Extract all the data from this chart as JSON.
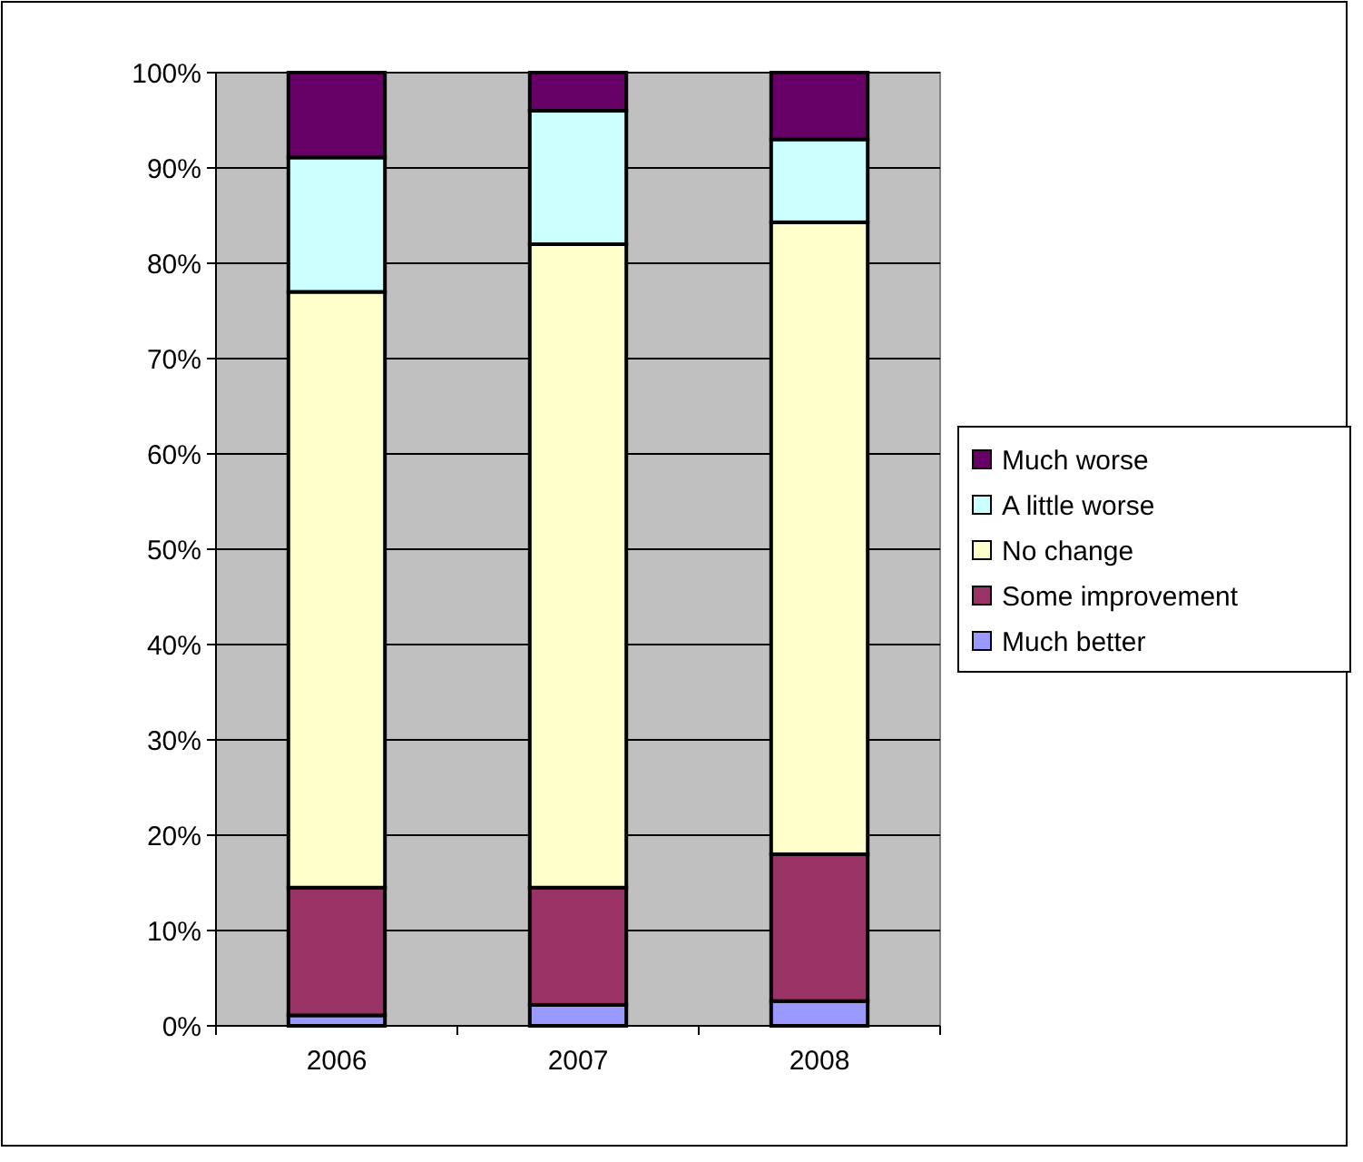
{
  "chart_data": {
    "type": "bar",
    "stacked": true,
    "categories": [
      "2006",
      "2007",
      "2008"
    ],
    "series": [
      {
        "name": "Much better",
        "color": "#9999ff",
        "values": [
          1.1,
          2.2,
          2.6
        ]
      },
      {
        "name": "Some improvement",
        "color": "#993366",
        "values": [
          13.4,
          12.3,
          15.4
        ]
      },
      {
        "name": "No change",
        "color": "#ffffcc",
        "values": [
          62.5,
          67.5,
          66.3
        ]
      },
      {
        "name": "A little worse",
        "color": "#ccffff",
        "values": [
          14.1,
          14,
          8.7
        ]
      },
      {
        "name": "Much worse",
        "color": "#660066",
        "values": [
          8.9,
          4,
          7
        ]
      }
    ],
    "ylim": [
      0,
      100
    ],
    "yticks": [
      {
        "value": 0,
        "label": "0%"
      },
      {
        "value": 10,
        "label": "10%"
      },
      {
        "value": 20,
        "label": "20%"
      },
      {
        "value": 30,
        "label": "30%"
      },
      {
        "value": 40,
        "label": "40%"
      },
      {
        "value": 50,
        "label": "50%"
      },
      {
        "value": 60,
        "label": "60%"
      },
      {
        "value": 70,
        "label": "70%"
      },
      {
        "value": 80,
        "label": "80%"
      },
      {
        "value": 90,
        "label": "90%"
      },
      {
        "value": 100,
        "label": "100%"
      }
    ],
    "grid": "y",
    "legend": "right"
  }
}
